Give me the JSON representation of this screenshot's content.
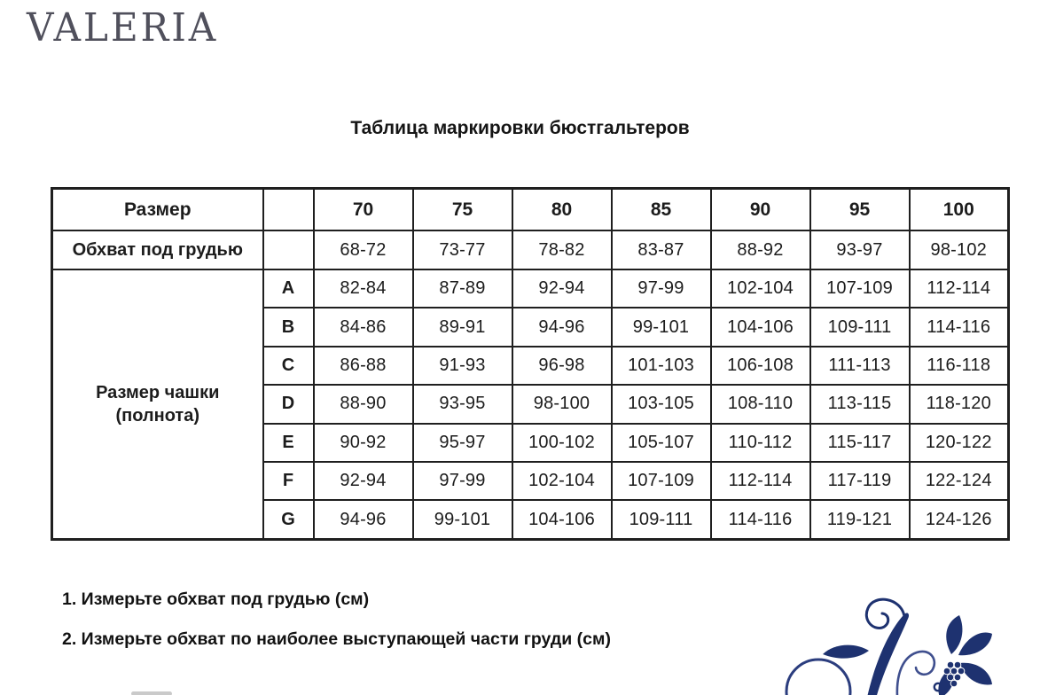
{
  "brand": "VALERIA",
  "title": "Таблица маркировки бюстгальтеров",
  "table": {
    "row_size_label": "Размер",
    "row_underbust_label": "Обхват под грудью",
    "cup_label_line1": "Размер чашки",
    "cup_label_line2": "(полнота)",
    "sizes": [
      "70",
      "75",
      "80",
      "85",
      "90",
      "95",
      "100"
    ],
    "underbust": [
      "68-72",
      "73-77",
      "78-82",
      "83-87",
      "88-92",
      "93-97",
      "98-102"
    ],
    "cups": [
      {
        "cup": "A",
        "values": [
          "82-84",
          "87-89",
          "92-94",
          "97-99",
          "102-104",
          "107-109",
          "112-114"
        ]
      },
      {
        "cup": "B",
        "values": [
          "84-86",
          "89-91",
          "94-96",
          "99-101",
          "104-106",
          "109-111",
          "114-116"
        ]
      },
      {
        "cup": "C",
        "values": [
          "86-88",
          "91-93",
          "96-98",
          "101-103",
          "106-108",
          "111-113",
          "116-118"
        ]
      },
      {
        "cup": "D",
        "values": [
          "88-90",
          "93-95",
          "98-100",
          "103-105",
          "108-110",
          "113-115",
          "118-120"
        ]
      },
      {
        "cup": "E",
        "values": [
          "90-92",
          "95-97",
          "100-102",
          "105-107",
          "110-112",
          "115-117",
          "120-122"
        ]
      },
      {
        "cup": "F",
        "values": [
          "92-94",
          "97-99",
          "102-104",
          "107-109",
          "112-114",
          "117-119",
          "122-124"
        ]
      },
      {
        "cup": "G",
        "values": [
          "94-96",
          "99-101",
          "104-106",
          "109-111",
          "114-116",
          "119-121",
          "124-126"
        ]
      }
    ]
  },
  "instructions": [
    "1. Измерьте обхват под грудью (см)",
    "2. Измерьте обхват по наиболее выступающей части груди (см)"
  ],
  "colors": {
    "header_bg": "#f9e3c1",
    "cup_bg": "#d3d0e2",
    "border": "#1f1f1f",
    "logo_gray": "#50505c",
    "ornament_navy": "#1e3270"
  },
  "ornament": "floral-flourish-bottom-right"
}
